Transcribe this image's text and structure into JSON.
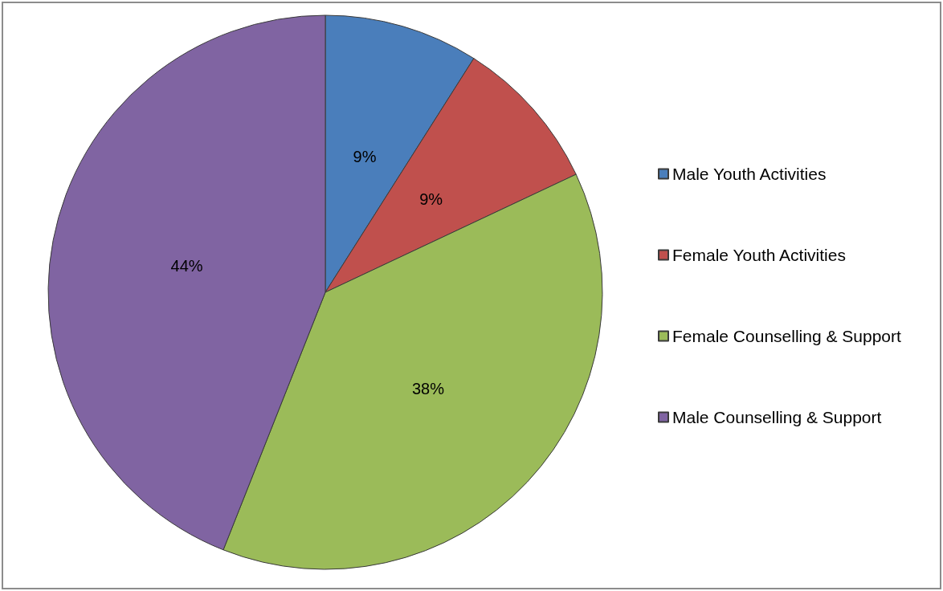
{
  "chart_data": {
    "type": "pie",
    "categories": [
      "Male Youth Activities",
      "Female Youth Activities",
      "Female Counselling & Support",
      "Male Counselling & Support"
    ],
    "values": [
      9,
      9,
      38,
      44
    ],
    "colors": [
      "#4a7ebb",
      "#c0504d",
      "#9bbb59",
      "#8064a2"
    ],
    "value_labels": [
      "9%",
      "9%",
      "38%",
      "44%"
    ],
    "legend": "right"
  }
}
